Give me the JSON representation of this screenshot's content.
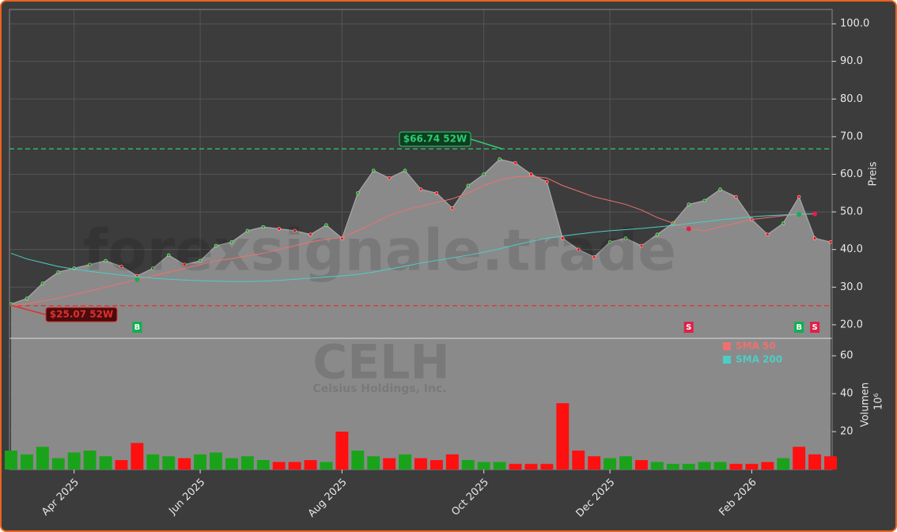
{
  "chart_data": {
    "type": "area",
    "categories": [
      null,
      null,
      null,
      null,
      "Apr 2025",
      null,
      null,
      null,
      null,
      null,
      null,
      null,
      "Jun 2025",
      null,
      null,
      null,
      null,
      null,
      null,
      null,
      null,
      "Aug 2025",
      null,
      null,
      null,
      null,
      null,
      null,
      null,
      null,
      "Oct 2025",
      null,
      null,
      null,
      null,
      null,
      null,
      null,
      "Dec 2025",
      null,
      null,
      null,
      null,
      null,
      null,
      null,
      null,
      "Feb 2026",
      null,
      null,
      null,
      null,
      null
    ],
    "price": {
      "color": "#8a8a8a",
      "values": [
        25.5,
        27,
        31,
        34,
        35,
        36,
        37,
        35.5,
        33,
        35,
        38.5,
        36,
        37,
        41,
        42,
        45,
        46,
        45.5,
        45,
        44,
        46.5,
        43,
        55,
        61,
        59,
        61,
        56,
        55,
        51,
        57,
        60,
        64,
        63,
        60,
        58,
        43,
        40,
        38,
        42,
        43,
        41,
        44,
        47,
        52,
        53,
        56,
        54,
        48,
        44,
        47,
        54,
        43,
        42
      ]
    },
    "overlays": [
      {
        "name": "SMA 50",
        "color": "#f07070",
        "values": [
          25,
          25.6,
          26.3,
          27.1,
          28,
          29,
          30,
          31,
          32,
          33,
          34,
          35,
          36,
          37,
          37.6,
          38.3,
          39,
          40,
          41,
          42,
          42.7,
          43.2,
          45,
          47,
          49,
          50.5,
          51.5,
          52.5,
          53.5,
          55,
          57,
          58.5,
          59.3,
          59.5,
          59,
          57,
          55.5,
          54,
          53,
          52,
          50.5,
          48.5,
          47,
          45.5,
          45,
          46,
          47,
          48,
          48.5,
          49,
          49.3,
          49.5,
          null
        ]
      },
      {
        "name": "SMA 200",
        "color": "#4ecdc4",
        "values": [
          39,
          37.5,
          36.5,
          35.5,
          34.8,
          34.2,
          33.7,
          33.2,
          32.8,
          32.4,
          32.1,
          31.9,
          31.7,
          31.6,
          31.5,
          31.5,
          31.6,
          31.8,
          32.1,
          32.4,
          32.7,
          33,
          33.4,
          34,
          34.8,
          35.6,
          36.4,
          37.1,
          37.8,
          38.5,
          39.3,
          40.2,
          41.2,
          42.2,
          43,
          43.6,
          44.1,
          44.6,
          45,
          45.3,
          45.6,
          46,
          46.4,
          46.9,
          47.4,
          47.9,
          48.3,
          48.7,
          49,
          49.2,
          49.4,
          49.5,
          null
        ]
      }
    ],
    "volume": {
      "values": [
        10,
        8,
        12,
        6,
        9,
        10,
        7,
        5,
        14,
        8,
        7,
        6,
        8,
        9,
        6,
        7,
        5,
        4,
        4,
        5,
        4,
        20,
        10,
        7,
        6,
        8,
        6,
        5,
        8,
        5,
        4,
        4,
        3,
        3,
        3,
        35,
        10,
        7,
        6,
        7,
        5,
        4,
        3,
        3,
        4,
        4,
        3,
        3,
        4,
        6,
        12,
        8,
        7
      ],
      "colors": [
        "#1aa31a",
        "#1aa31a",
        "#1aa31a",
        "#1aa31a",
        "#1aa31a",
        "#1aa31a",
        "#1aa31a",
        "#ff1010",
        "#ff1010",
        "#1aa31a",
        "#1aa31a",
        "#ff1010",
        "#1aa31a",
        "#1aa31a",
        "#1aa31a",
        "#1aa31a",
        "#1aa31a",
        "#ff1010",
        "#ff1010",
        "#ff1010",
        "#1aa31a",
        "#ff1010",
        "#1aa31a",
        "#1aa31a",
        "#ff1010",
        "#1aa31a",
        "#ff1010",
        "#ff1010",
        "#ff1010",
        "#1aa31a",
        "#1aa31a",
        "#1aa31a",
        "#ff1010",
        "#ff1010",
        "#ff1010",
        "#ff1010",
        "#ff1010",
        "#ff1010",
        "#1aa31a",
        "#1aa31a",
        "#ff1010",
        "#1aa31a",
        "#1aa31a",
        "#1aa31a",
        "#1aa31a",
        "#1aa31a",
        "#ff1010",
        "#ff1010",
        "#ff1010",
        "#1aa31a",
        "#ff1010",
        "#ff1010",
        "#ff1010"
      ]
    },
    "ylim": [
      16.4,
      103.8
    ],
    "yticks": [
      {
        "value": 20,
        "label": "20.0"
      },
      {
        "value": 30,
        "label": "30.0"
      },
      {
        "value": 40,
        "label": "40.0"
      },
      {
        "value": 50,
        "label": "50.0"
      },
      {
        "value": 60,
        "label": "60.0"
      },
      {
        "value": 70,
        "label": "70.0"
      },
      {
        "value": 80,
        "label": "80.0"
      },
      {
        "value": 90,
        "label": "90.0"
      },
      {
        "value": 100,
        "label": "100.0"
      }
    ],
    "y2lim": [
      0,
      69.2
    ],
    "y2ticks": [
      20,
      40,
      60
    ],
    "ylabel": "Preis",
    "y2label": "Volumen",
    "y2unit": "10⁶",
    "grid": true,
    "annotations": [
      {
        "text": "$66.74 52W",
        "value": 66.74,
        "color": "#2ecc71"
      },
      {
        "text": "$25.07 52W",
        "value": 25.07,
        "color": "#e03030"
      }
    ],
    "signals": [
      null,
      null,
      null,
      null,
      null,
      null,
      null,
      null,
      "B",
      null,
      null,
      null,
      null,
      null,
      null,
      null,
      null,
      null,
      null,
      null,
      null,
      null,
      null,
      null,
      null,
      null,
      null,
      null,
      null,
      null,
      null,
      null,
      null,
      null,
      null,
      null,
      null,
      null,
      null,
      null,
      null,
      null,
      null,
      "S",
      null,
      null,
      null,
      null,
      null,
      null,
      "B",
      "S",
      null
    ],
    "watermarks": [
      "forexsignale.trade",
      "CELH",
      "Celsius Holdings, Inc."
    ]
  }
}
